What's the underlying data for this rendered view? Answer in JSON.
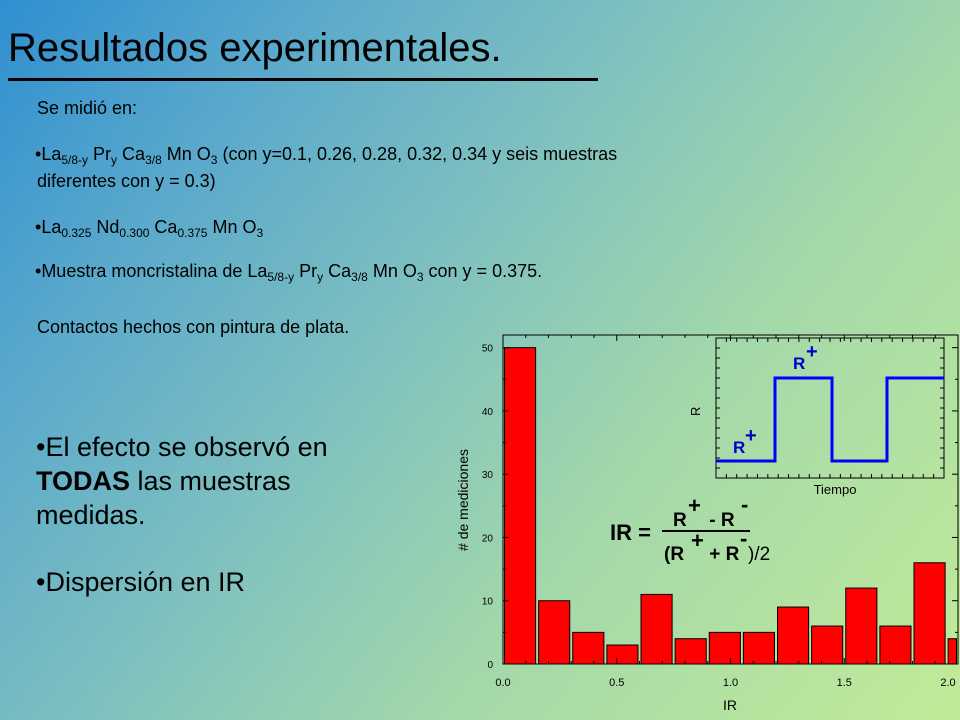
{
  "slide": {
    "title": "Resultados experimentales.",
    "intro": "Se midió en:",
    "item1": {
      "bullet": "•",
      "parts": [
        "La",
        "5/8-y",
        " Pr",
        "y",
        " Ca",
        "3/8",
        " Mn O",
        "3",
        " (con y=0.1, 0.26, 0.28, 0.32, 0.34 y seis muestras"
      ],
      "line2": "diferentes con y = 0.3)"
    },
    "item2": {
      "bullet": "•",
      "parts": [
        "La",
        "0.325",
        " Nd",
        "0.300",
        " Ca",
        "0.375",
        " Mn O",
        "3"
      ]
    },
    "item3": {
      "bullet": "•",
      "parts": [
        "Muestra moncristalina de La",
        "5/8-y",
        " Pr",
        "y",
        " Ca",
        "3/8",
        " Mn O",
        "3",
        " con y = 0.375."
      ]
    },
    "contacts": "Contactos hechos con pintura de plata.",
    "effect": {
      "bullet": "•",
      "line1": "El efecto se observó en",
      "bold": "TODAS",
      "line2_rest": " las muestras",
      "line3": "medidas."
    },
    "dispersion": "•Dispersión en IR"
  },
  "chart_data": {
    "type": "bar",
    "xlabel": "IR",
    "ylabel": "# de mediciones",
    "xlim": [
      0.0,
      2.0
    ],
    "ylim": [
      0,
      52
    ],
    "xticks": [
      "0.0",
      "0.5",
      "1.0",
      "1.5",
      "2.0"
    ],
    "yticks": [
      "0",
      "10",
      "20",
      "30",
      "40",
      "50"
    ],
    "bin_width": 0.15,
    "bin_starts": [
      0.0,
      0.15,
      0.3,
      0.45,
      0.6,
      0.75,
      0.9,
      1.05,
      1.2,
      1.35,
      1.5,
      1.65,
      1.8,
      1.95
    ],
    "values": [
      50,
      10,
      5,
      3,
      11,
      4,
      5,
      5,
      9,
      6,
      12,
      6,
      16,
      4
    ],
    "bar_color": "#ff0000",
    "inset": {
      "type": "line",
      "xlabel": "Tiempo",
      "ylabel": "R",
      "line_color": "#0000ff",
      "high_label": "R",
      "low_label": "R",
      "sign": "+"
    },
    "formula": {
      "lhs": "IR =",
      "num_r1": "R",
      "num_sign1": "+",
      "num_op": " - R",
      "num_sign2": "-",
      "den_open": "(R",
      "den_sign1": "+",
      "den_op": " + R",
      "den_sign2": "-",
      "den_close": ")/2"
    }
  }
}
